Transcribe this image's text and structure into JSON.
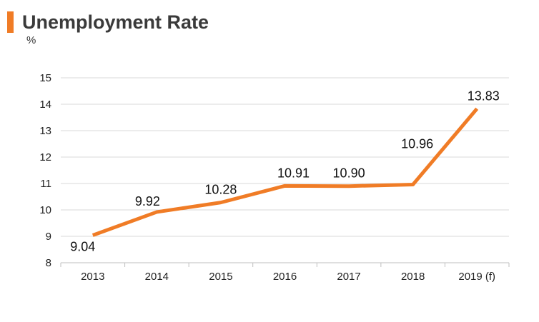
{
  "colors": {
    "accent": "#f07c26",
    "grid": "#d9d9d9",
    "axis": "#bfbfbf"
  },
  "chart_data": {
    "type": "line",
    "title": "Unemployment Rate",
    "ylabel": "%",
    "categories": [
      "2013",
      "2014",
      "2015",
      "2016",
      "2017",
      "2018",
      "2019 (f)"
    ],
    "values": [
      9.04,
      9.92,
      10.28,
      10.91,
      10.9,
      10.96,
      13.83
    ],
    "value_labels": [
      "9.04",
      "9.92",
      "10.28",
      "10.91",
      "10.90",
      "10.96",
      "13.83"
    ],
    "ylim": [
      8,
      15
    ],
    "yticks": [
      8,
      9,
      10,
      11,
      12,
      13,
      14,
      15
    ],
    "grid": true,
    "legend": "none"
  }
}
